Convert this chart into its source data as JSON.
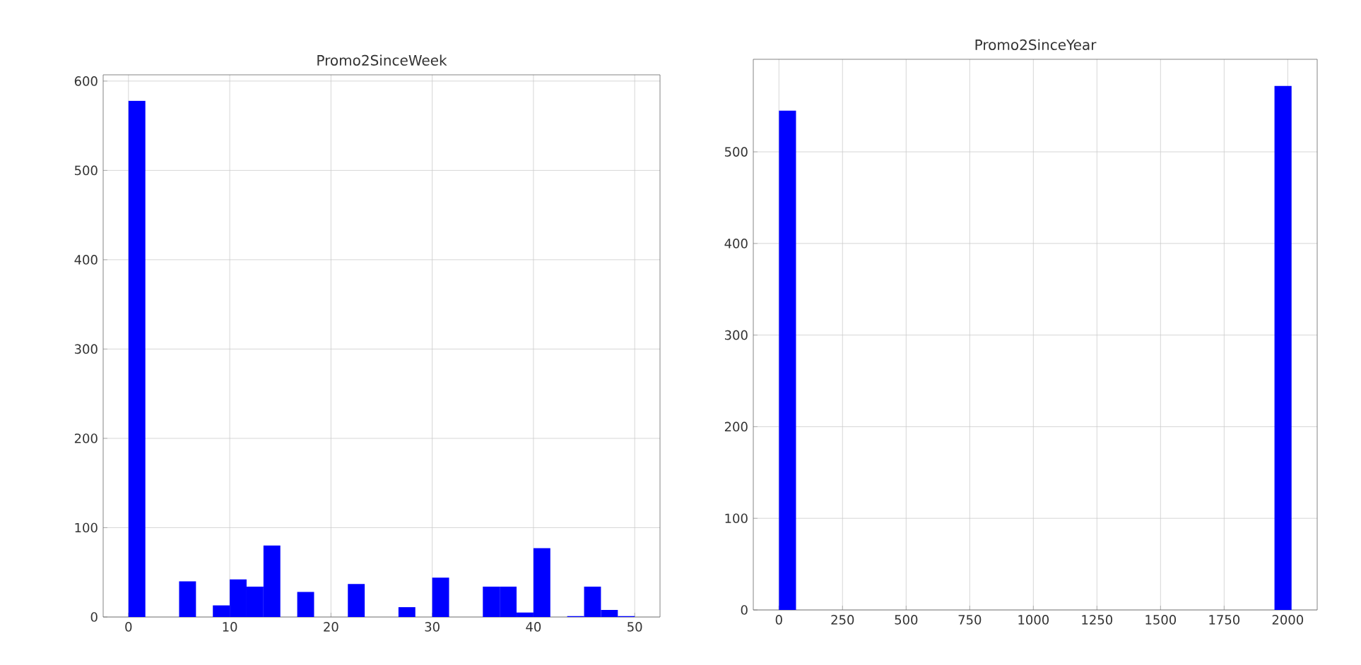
{
  "chart_data": [
    {
      "type": "histogram",
      "title": "Promo2SinceWeek",
      "color": "#0000ff",
      "grid": true,
      "bins": [
        0,
        1.667,
        3.333,
        5,
        6.667,
        8.333,
        10,
        11.667,
        13.333,
        15,
        16.667,
        18.333,
        20,
        21.667,
        23.333,
        25,
        26.667,
        28.333,
        30,
        31.667,
        33.333,
        35,
        36.667,
        38.333,
        40,
        41.667,
        43.333,
        45,
        46.667,
        48.333,
        50
      ],
      "values": [
        578,
        0,
        0,
        40,
        0,
        13,
        42,
        34,
        80,
        0,
        28,
        0,
        0,
        37,
        0,
        0,
        11,
        0,
        44,
        0,
        0,
        34,
        34,
        5,
        77,
        0,
        1,
        34,
        8,
        1
      ],
      "xlim": [
        -2.5,
        52.5
      ],
      "ylim": [
        0,
        607
      ],
      "xticks": [
        0,
        10,
        20,
        30,
        40,
        50
      ],
      "yticks": [
        0,
        100,
        200,
        300,
        400,
        500,
        600
      ]
    },
    {
      "type": "histogram",
      "title": "Promo2SinceYear",
      "color": "#0000ff",
      "grid": true,
      "bins": [
        0,
        67.17,
        134.33,
        201.5,
        268.67,
        335.83,
        403,
        470.17,
        537.33,
        604.5,
        671.67,
        738.83,
        806,
        873.17,
        940.33,
        1007.5,
        1074.67,
        1141.83,
        1209,
        1276.17,
        1343.33,
        1410.5,
        1477.67,
        1544.83,
        1612,
        1679.17,
        1746.33,
        1813.5,
        1880.67,
        1947.83,
        2015
      ],
      "values": [
        545,
        0,
        0,
        0,
        0,
        0,
        0,
        0,
        0,
        0,
        0,
        0,
        0,
        0,
        0,
        0,
        0,
        0,
        0,
        0,
        0,
        0,
        0,
        0,
        0,
        0,
        0,
        0,
        0,
        572
      ],
      "xlim": [
        -100.75,
        2115.75
      ],
      "ylim": [
        0,
        601
      ],
      "xticks": [
        0,
        250,
        500,
        750,
        1000,
        1250,
        1500,
        1750,
        2000
      ],
      "yticks": [
        0,
        100,
        200,
        300,
        400,
        500
      ]
    }
  ]
}
